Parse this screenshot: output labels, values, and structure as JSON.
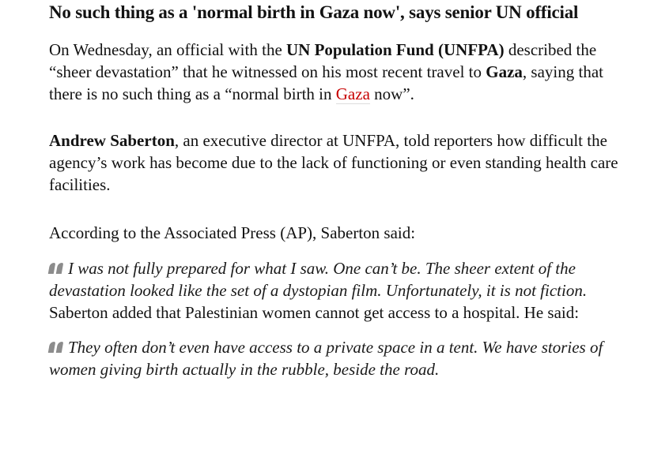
{
  "colors": {
    "text": "#121212",
    "link_red": "#c70000",
    "link_underline": "#dcdcdc",
    "quote_icon_grey": "#8c8c8c",
    "background": "#ffffff"
  },
  "icons": {
    "blockquote_marker": "double-quote-icon"
  },
  "article": {
    "headline": "No such thing as a 'normal birth in Gaza now', says senior UN official",
    "p1": {
      "s1": "On Wednesday, an official with the ",
      "b1": "UN Population Fund (UNFPA)",
      "s2": " described the “sheer devastation” that he witnessed on his most recent travel to ",
      "b2": "Gaza",
      "s3": ", saying that there is no such thing as a “normal birth in ",
      "link": "Gaza",
      "s4": " now”."
    },
    "p2": {
      "b1": "Andrew Saberton",
      "s1": ", an executive director at UNFPA, told reporters how difficult the agency’s work has become due to the lack of functioning or even standing health care facilities."
    },
    "p3": "According to the Associated Press (AP), Saberton said:",
    "quote1": "I was not fully prepared for what I saw. One can’t be. The sheer extent of the devastation looked like the set of a dystopian film. Unfortunately, it is not fiction.",
    "p4": "Saberton added that Palestinian women cannot get access to a hospital. He said:",
    "quote2": "They often don’t even have access to a private space in a tent. We have stories of women giving birth actually in the rubble, beside the road."
  }
}
